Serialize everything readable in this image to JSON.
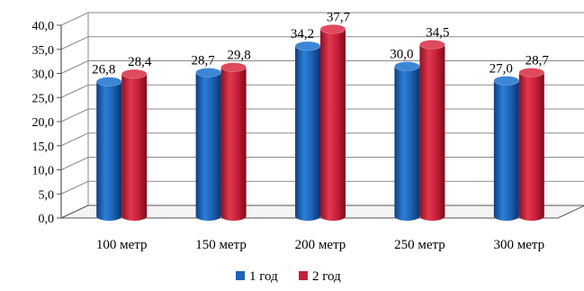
{
  "chart_data": {
    "type": "bar",
    "categories": [
      "100 метр",
      "150 метр",
      "200 метр",
      "250 метр",
      "300 метр"
    ],
    "series": [
      {
        "name": "1 год",
        "values": [
          26.8,
          28.7,
          34.2,
          30.0,
          27.0
        ],
        "labels": [
          "26,8",
          "28,7",
          "34,2",
          "30,0",
          "27,0"
        ],
        "color": "#1F63B5"
      },
      {
        "name": "2 год",
        "values": [
          28.4,
          29.8,
          37.7,
          34.5,
          28.7
        ],
        "labels": [
          "28,4",
          "29,8",
          "37,7",
          "34,5",
          "28,7"
        ],
        "color": "#C8203A"
      }
    ],
    "yticks": [
      0,
      5,
      10,
      15,
      20,
      25,
      30,
      35,
      40
    ],
    "ytick_labels": [
      "0,0",
      "5,0",
      "10,0",
      "15,0",
      "20,0",
      "25,0",
      "30,0",
      "35,0",
      "40,0"
    ],
    "ylim": [
      0,
      40
    ],
    "grid": true,
    "legend_position": "bottom",
    "title": "",
    "xlabel": "",
    "ylabel": ""
  }
}
